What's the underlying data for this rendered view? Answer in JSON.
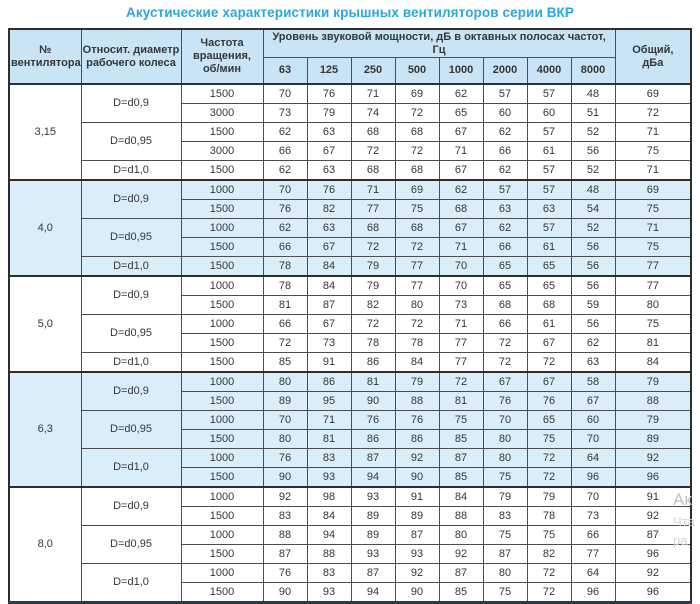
{
  "page": {
    "title": "Акустические характеристики крышных вентиляторов серии ВКР"
  },
  "colors": {
    "title_accent": "#29a7df",
    "header_bg": "#c9e5f5",
    "blue_row_bg": "#daeefa",
    "border": "#4d4d4d",
    "text": "#363636"
  },
  "watermark": {
    "fragments": [
      "Ак",
      "Чта",
      "ра"
    ]
  },
  "table": {
    "headers": {
      "fan_number": "№\nвентилятора",
      "diameter": "Относит. диаметр\nрабочего колеса",
      "rpm": "Частота\nвращения,\nоб/мин",
      "spl_group": "Уровень звуковой мощности, дБ в октавных полосах частот, Гц",
      "octave_bands": [
        "63",
        "125",
        "250",
        "500",
        "1000",
        "2000",
        "4000",
        "8000"
      ],
      "total": "Общий,\nдБа"
    },
    "groups": [
      {
        "fan": "3,15",
        "shade": "white",
        "subgroups": [
          {
            "diameter": "D=d0,9",
            "rows": [
              {
                "rpm": "1500",
                "levels": [
                  "70",
                  "76",
                  "71",
                  "69",
                  "62",
                  "57",
                  "57",
                  "48"
                ],
                "total": "69"
              },
              {
                "rpm": "3000",
                "levels": [
                  "73",
                  "79",
                  "74",
                  "72",
                  "65",
                  "60",
                  "60",
                  "51"
                ],
                "total": "72"
              }
            ]
          },
          {
            "diameter": "D=d0,95",
            "rows": [
              {
                "rpm": "1500",
                "levels": [
                  "62",
                  "63",
                  "68",
                  "68",
                  "67",
                  "62",
                  "57",
                  "52"
                ],
                "total": "71"
              },
              {
                "rpm": "3000",
                "levels": [
                  "66",
                  "67",
                  "72",
                  "72",
                  "71",
                  "66",
                  "61",
                  "56"
                ],
                "total": "75"
              }
            ]
          },
          {
            "diameter": "D=d1,0",
            "rows": [
              {
                "rpm": "1500",
                "levels": [
                  "62",
                  "63",
                  "68",
                  "68",
                  "67",
                  "62",
                  "57",
                  "52"
                ],
                "total": "71"
              }
            ]
          }
        ]
      },
      {
        "fan": "4,0",
        "shade": "blue",
        "subgroups": [
          {
            "diameter": "D=d0,9",
            "rows": [
              {
                "rpm": "1000",
                "levels": [
                  "70",
                  "76",
                  "71",
                  "69",
                  "62",
                  "57",
                  "57",
                  "48"
                ],
                "total": "69"
              },
              {
                "rpm": "1500",
                "levels": [
                  "76",
                  "82",
                  "77",
                  "75",
                  "68",
                  "63",
                  "63",
                  "54"
                ],
                "total": "75"
              }
            ]
          },
          {
            "diameter": "D=d0,95",
            "rows": [
              {
                "rpm": "1000",
                "levels": [
                  "62",
                  "63",
                  "68",
                  "68",
                  "67",
                  "62",
                  "57",
                  "52"
                ],
                "total": "71"
              },
              {
                "rpm": "1500",
                "levels": [
                  "66",
                  "67",
                  "72",
                  "72",
                  "71",
                  "66",
                  "61",
                  "56"
                ],
                "total": "75"
              }
            ]
          },
          {
            "diameter": "D=d1,0",
            "rows": [
              {
                "rpm": "1500",
                "levels": [
                  "78",
                  "84",
                  "79",
                  "77",
                  "70",
                  "65",
                  "65",
                  "56"
                ],
                "total": "77"
              }
            ]
          }
        ]
      },
      {
        "fan": "5,0",
        "shade": "white",
        "subgroups": [
          {
            "diameter": "D=d0,9",
            "rows": [
              {
                "rpm": "1000",
                "levels": [
                  "78",
                  "84",
                  "79",
                  "77",
                  "70",
                  "65",
                  "65",
                  "56"
                ],
                "total": "77"
              },
              {
                "rpm": "1500",
                "levels": [
                  "81",
                  "87",
                  "82",
                  "80",
                  "73",
                  "68",
                  "68",
                  "59"
                ],
                "total": "80"
              }
            ]
          },
          {
            "diameter": "D=d0,95",
            "rows": [
              {
                "rpm": "1000",
                "levels": [
                  "66",
                  "67",
                  "72",
                  "72",
                  "71",
                  "66",
                  "61",
                  "56"
                ],
                "total": "75"
              },
              {
                "rpm": "1500",
                "levels": [
                  "72",
                  "73",
                  "78",
                  "78",
                  "77",
                  "72",
                  "67",
                  "62"
                ],
                "total": "81"
              }
            ]
          },
          {
            "diameter": "D=d1,0",
            "rows": [
              {
                "rpm": "1500",
                "levels": [
                  "85",
                  "91",
                  "86",
                  "84",
                  "77",
                  "72",
                  "72",
                  "63"
                ],
                "total": "84"
              }
            ]
          }
        ]
      },
      {
        "fan": "6,3",
        "shade": "blue",
        "subgroups": [
          {
            "diameter": "D=d0,9",
            "rows": [
              {
                "rpm": "1000",
                "levels": [
                  "80",
                  "86",
                  "81",
                  "79",
                  "72",
                  "67",
                  "67",
                  "58"
                ],
                "total": "79"
              },
              {
                "rpm": "1500",
                "levels": [
                  "89",
                  "95",
                  "90",
                  "88",
                  "81",
                  "76",
                  "76",
                  "67"
                ],
                "total": "88"
              }
            ]
          },
          {
            "diameter": "D=d0,95",
            "rows": [
              {
                "rpm": "1000",
                "levels": [
                  "70",
                  "71",
                  "76",
                  "76",
                  "75",
                  "70",
                  "65",
                  "60"
                ],
                "total": "79"
              },
              {
                "rpm": "1500",
                "levels": [
                  "80",
                  "81",
                  "86",
                  "86",
                  "85",
                  "80",
                  "75",
                  "70"
                ],
                "total": "89"
              }
            ]
          },
          {
            "diameter": "D=d1,0",
            "rows": [
              {
                "rpm": "1000",
                "levels": [
                  "76",
                  "83",
                  "87",
                  "92",
                  "87",
                  "80",
                  "72",
                  "64"
                ],
                "total": "92"
              },
              {
                "rpm": "1500",
                "levels": [
                  "90",
                  "93",
                  "94",
                  "90",
                  "85",
                  "75",
                  "72",
                  "96"
                ],
                "total": "96"
              }
            ]
          }
        ]
      },
      {
        "fan": "8,0",
        "shade": "white",
        "subgroups": [
          {
            "diameter": "D=d0,9",
            "rows": [
              {
                "rpm": "1000",
                "levels": [
                  "92",
                  "98",
                  "93",
                  "91",
                  "84",
                  "79",
                  "79",
                  "70"
                ],
                "total": "91"
              },
              {
                "rpm": "1500",
                "levels": [
                  "83",
                  "84",
                  "89",
                  "89",
                  "88",
                  "83",
                  "78",
                  "73"
                ],
                "total": "92"
              }
            ]
          },
          {
            "diameter": "D=d0,95",
            "rows": [
              {
                "rpm": "1000",
                "levels": [
                  "88",
                  "94",
                  "89",
                  "87",
                  "80",
                  "75",
                  "75",
                  "66"
                ],
                "total": "87"
              },
              {
                "rpm": "1500",
                "levels": [
                  "87",
                  "88",
                  "93",
                  "93",
                  "92",
                  "87",
                  "82",
                  "77"
                ],
                "total": "96"
              }
            ]
          },
          {
            "diameter": "D=d1,0",
            "rows": [
              {
                "rpm": "1000",
                "levels": [
                  "76",
                  "83",
                  "87",
                  "92",
                  "87",
                  "80",
                  "72",
                  "64"
                ],
                "total": "92"
              },
              {
                "rpm": "1500",
                "levels": [
                  "90",
                  "93",
                  "94",
                  "90",
                  "85",
                  "75",
                  "72",
                  "96"
                ],
                "total": "96"
              }
            ]
          }
        ]
      }
    ]
  }
}
